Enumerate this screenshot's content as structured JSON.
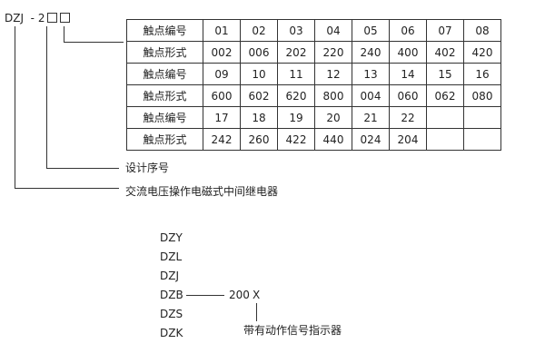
{
  "model": {
    "prefix": "DZJ",
    "dash": "-",
    "digit": "2"
  },
  "table": {
    "rows": [
      [
        "触点编号",
        "01",
        "02",
        "03",
        "04",
        "05",
        "06",
        "07",
        "08"
      ],
      [
        "触点形式",
        "002",
        "006",
        "202",
        "220",
        "240",
        "400",
        "402",
        "420"
      ],
      [
        "触点编号",
        "09",
        "10",
        "11",
        "12",
        "13",
        "14",
        "15",
        "16"
      ],
      [
        "触点形式",
        "600",
        "602",
        "620",
        "800",
        "004",
        "060",
        "062",
        "080"
      ],
      [
        "触点编号",
        "17",
        "18",
        "19",
        "20",
        "21",
        "22",
        "",
        ""
      ],
      [
        "触点形式",
        "242",
        "260",
        "422",
        "440",
        "024",
        "204",
        "",
        ""
      ]
    ]
  },
  "labels": {
    "design_no": "设计序号",
    "relay_type": "交流电压操作电磁式中间继电器"
  },
  "series": {
    "items": [
      "DZY",
      "DZL",
      "DZJ",
      "DZB",
      "DZS",
      "DZK"
    ],
    "code": "200",
    "suffix": "X",
    "suffix_note": "带有动作信号指示器"
  }
}
